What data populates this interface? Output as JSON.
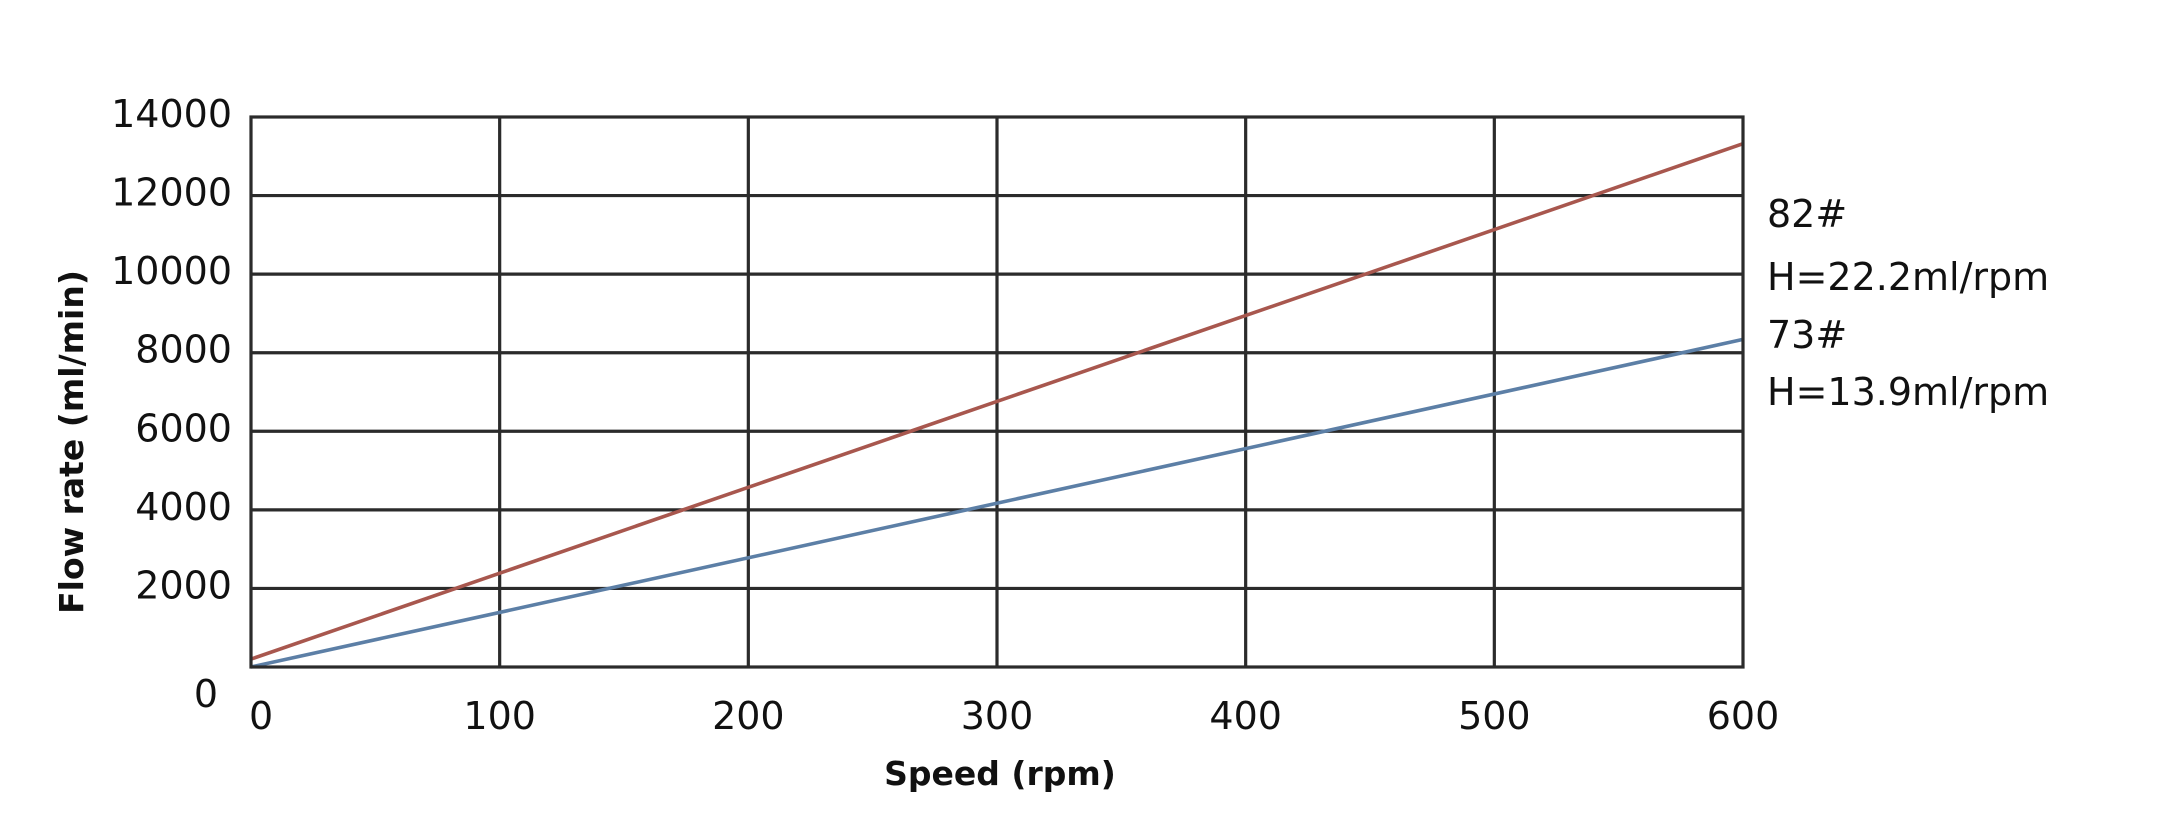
{
  "chart_data": {
    "type": "line",
    "title": "",
    "xlabel": "Speed (rpm)",
    "ylabel": "Flow rate (ml/min)",
    "xlim": [
      0,
      600
    ],
    "ylim": [
      0,
      14000
    ],
    "x_ticks": [
      0,
      100,
      200,
      300,
      400,
      500,
      600
    ],
    "y_ticks": [
      0,
      2000,
      4000,
      6000,
      8000,
      10000,
      12000,
      14000
    ],
    "x_tick_labels": [
      "0",
      "100",
      "200",
      "300",
      "400",
      "500",
      "600"
    ],
    "y_tick_labels": [
      "0",
      "2000",
      "4000",
      "6000",
      "8000",
      "10000",
      "12000",
      "14000"
    ],
    "grid": true,
    "legend_position": "right",
    "series": [
      {
        "name": "82#",
        "label_line2": "H=22.2ml/rpm",
        "color": "#a8574e",
        "x": [
          0,
          600
        ],
        "y": [
          200,
          13320
        ]
      },
      {
        "name": "73#",
        "label_line2": "H=13.9ml/rpm",
        "color": "#5c7fa6",
        "x": [
          0,
          600
        ],
        "y": [
          0,
          8340
        ]
      }
    ]
  }
}
